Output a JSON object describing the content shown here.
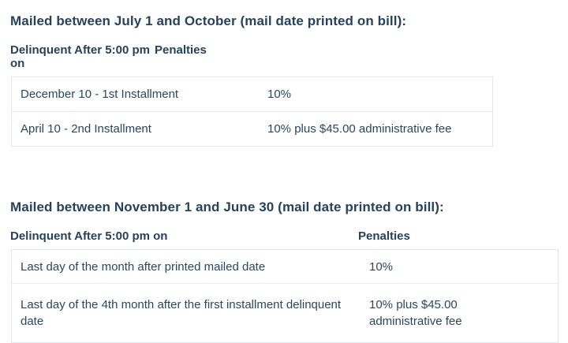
{
  "colors": {
    "text": "#2b4760",
    "heading_text": "#26425c",
    "table_border": "#e0e5e9",
    "row_divider": "#e9edf0",
    "background": "#ffffff"
  },
  "sections": [
    {
      "heading": "Mailed between July 1 and October (mail date printed on bill):",
      "columns": [
        "Delinquent After 5:00 pm on",
        "Penalties"
      ],
      "rows": [
        {
          "delinquent_after": "December 10 - 1st Installment",
          "penalty": "10%"
        },
        {
          "delinquent_after": "April 10 - 2nd Installment",
          "penalty": "10% plus $45.00 administrative fee"
        }
      ]
    },
    {
      "heading": "Mailed between November 1 and June 30 (mail date printed on bill):",
      "columns": [
        "Delinquent After 5:00 pm on",
        "Penalties"
      ],
      "rows": [
        {
          "delinquent_after": "Last day of the month after printed mailed date",
          "penalty": "10%"
        },
        {
          "delinquent_after": "Last day of the 4th month after the first installment delinquent date",
          "penalty": "10% plus $45.00 administrative fee"
        }
      ]
    }
  ]
}
